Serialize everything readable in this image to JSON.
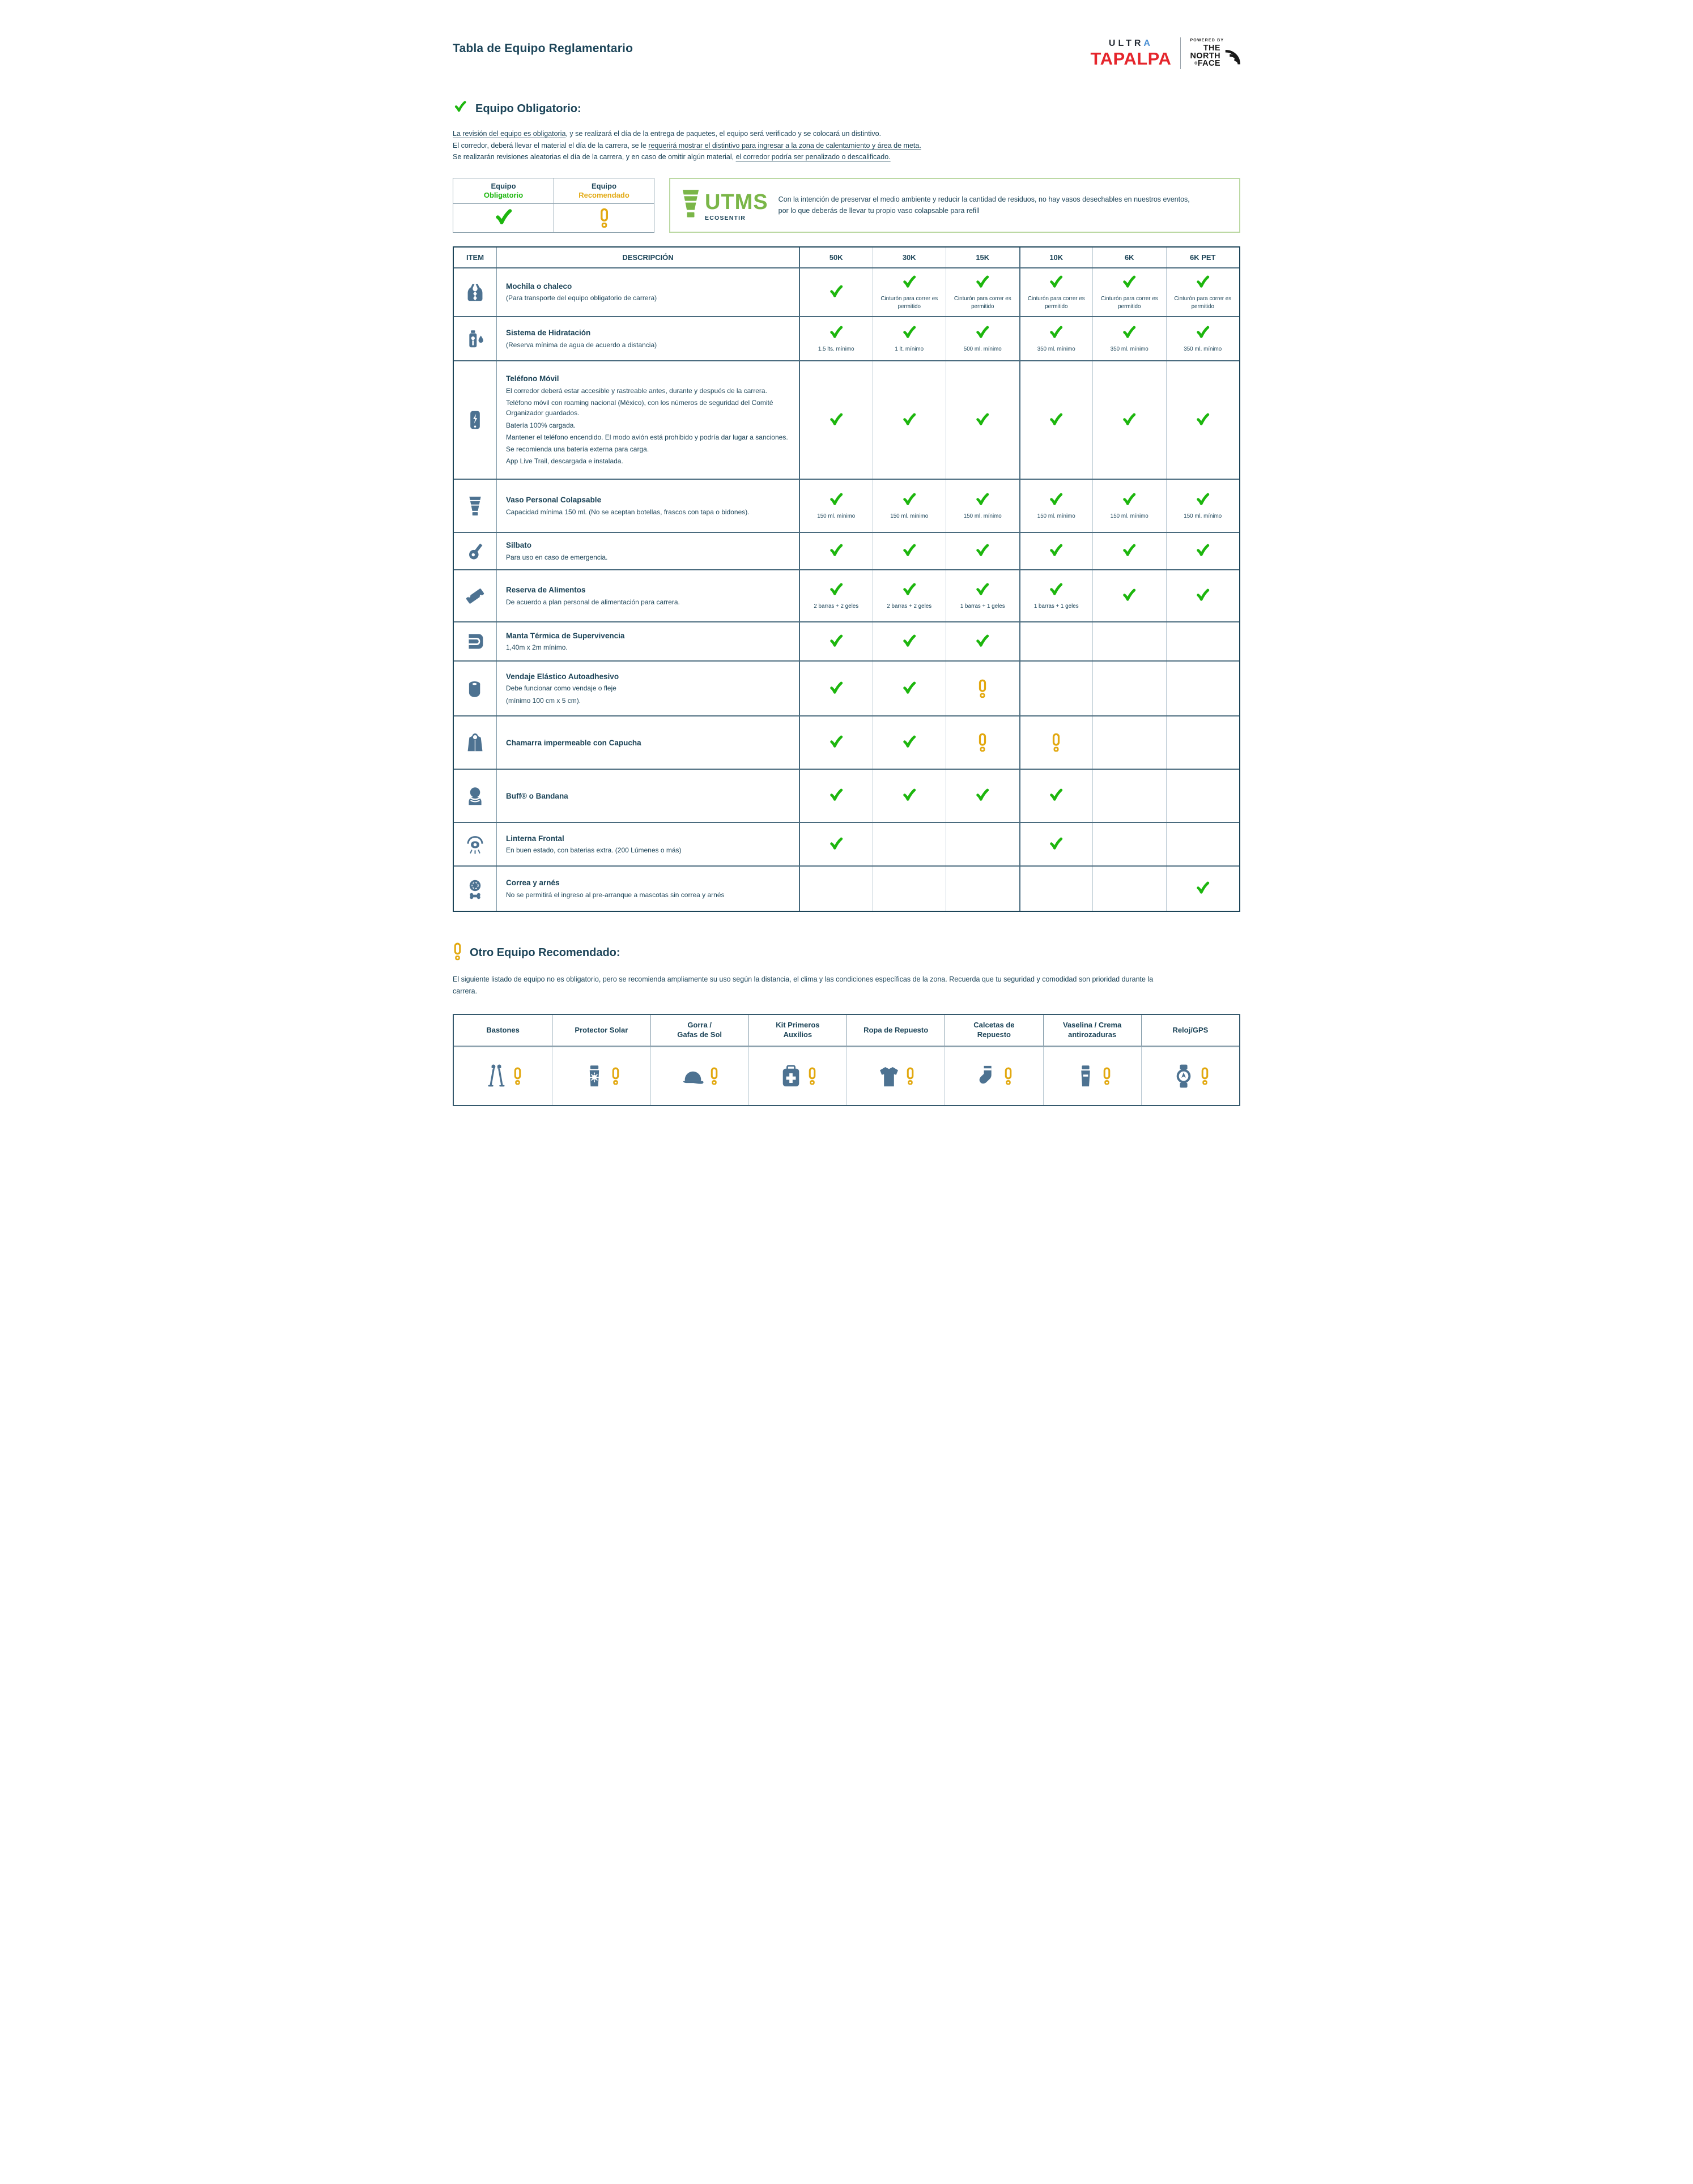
{
  "page": {
    "title": "Tabla de Equipo Reglamentario"
  },
  "colors": {
    "navy": "#1c4458",
    "slate_icon": "#4d7291",
    "check_green": "#1db60e",
    "warn_yellow": "#e2a80f",
    "brand_red": "#e5252c",
    "eco_green": "#7ab648",
    "ultra_blue": "#4a8fd3"
  },
  "brand": {
    "ultra_prefix": "ULTR",
    "ultra_accent": "A",
    "tapalpa": "TAPALPA",
    "powered_by": "POWERED BY",
    "tnf_line1": "THE",
    "tnf_line2": "NORTH",
    "tnf_line3": "FACE",
    "tnf_reg": "®"
  },
  "sections": {
    "obligatorio": {
      "heading": "Equipo Obligatorio:",
      "paragraphs": [
        [
          {
            "text": "La revisión del equipo es obligatoria",
            "underline": true
          },
          {
            "text": ", y se realizará el día de la entrega de paquetes, el equipo será verificado y se colocará un distintivo.",
            "underline": false
          }
        ],
        [
          {
            "text": "El corredor, deberá llevar el material el día de la carrera, se le ",
            "underline": false
          },
          {
            "text": "requerirá mostrar el distintivo para ingresar a la zona de calentamiento y área de meta.",
            "underline": true
          }
        ],
        [
          {
            "text": "Se realizarán revisiones aleatorias el día de la carrera, y en caso de omitir algún material, ",
            "underline": false
          },
          {
            "text": "el corredor podría ser penalizado o descalificado.",
            "underline": true
          }
        ]
      ]
    },
    "recomendado": {
      "heading": "Otro Equipo Recomendado:",
      "paragraph": "El siguiente listado de equipo no es obligatorio, pero se recomienda ampliamente su uso según la distancia, el clima y las condiciones específicas de la zona. Recuerda que tu seguridad y comodidad son prioridad durante la carrera."
    }
  },
  "legend": {
    "col1_line1": "Equipo",
    "col1_line2": "Obligatorio",
    "col2_line1": "Equipo",
    "col2_line2": "Recomendado"
  },
  "eco_box": {
    "logo_text": "UTMS",
    "logo_sub": "ECOSENTIR",
    "text": "Con la intención de preservar el medio ambiente y reducir la cantidad de residuos, no hay vasos desechables en nuestros eventos, por lo que deberás de llevar tu propio vaso colapsable para refill"
  },
  "equipment_table": {
    "headers": [
      "ITEM",
      "DESCRIPCIÓN",
      "50K",
      "30K",
      "15K",
      "10K",
      "6K",
      "6K PET"
    ],
    "rows": [
      {
        "icon": "backpack-icon",
        "title": "Mochila o chaleco",
        "desc": "(Para transporte del equipo obligatorio de carrera)",
        "cells": [
          {
            "mark": "check"
          },
          {
            "mark": "check",
            "note": "Cinturón para correr es permitido"
          },
          {
            "mark": "check",
            "note": "Cinturón para correr es permitido"
          },
          {
            "mark": "check",
            "note": "Cinturón para correr es permitido"
          },
          {
            "mark": "check",
            "note": "Cinturón para correr es permitido"
          },
          {
            "mark": "check",
            "note": "Cinturón para correr es permitido"
          }
        ]
      },
      {
        "icon": "hydration-bottle-icon",
        "title": "Sistema de Hidratación",
        "desc": "(Reserva mínima de agua de acuerdo a distancia)",
        "cells": [
          {
            "mark": "check",
            "note": "1.5 lts. mínimo"
          },
          {
            "mark": "check",
            "note": "1 lt. mínimo"
          },
          {
            "mark": "check",
            "note": "500 ml. mínimo"
          },
          {
            "mark": "check",
            "note": "350 ml. mínimo"
          },
          {
            "mark": "check",
            "note": "350 ml. mínimo"
          },
          {
            "mark": "check",
            "note": "350 ml. mínimo"
          }
        ]
      },
      {
        "icon": "mobile-phone-icon",
        "title": "Teléfono Móvil",
        "desc": [
          "El corredor deberá estar accesible y rastreable antes, durante y después de la carrera.",
          "Teléfono móvil con roaming nacional (México), con los números de seguridad del Comité Organizador guardados.",
          "Batería 100% cargada.",
          "Mantener el teléfono encendido. El modo avión está prohibido y podría dar lugar a sanciones.",
          "Se recomienda una batería externa para carga.",
          "App Live Trail, descargada e instalada."
        ],
        "cells": [
          {
            "mark": "check"
          },
          {
            "mark": "check"
          },
          {
            "mark": "check"
          },
          {
            "mark": "check"
          },
          {
            "mark": "check"
          },
          {
            "mark": "check"
          }
        ]
      },
      {
        "icon": "collapsible-cup-icon",
        "title": "Vaso Personal Colapsable",
        "desc": "Capacidad mínima 150 ml. (No se aceptan botellas, frascos con tapa o bidones).",
        "cells": [
          {
            "mark": "check",
            "note": "150 ml. mínimo"
          },
          {
            "mark": "check",
            "note": "150 ml. mínimo"
          },
          {
            "mark": "check",
            "note": "150 ml. mínimo"
          },
          {
            "mark": "check",
            "note": "150 ml. mínimo"
          },
          {
            "mark": "check",
            "note": "150 ml. mínimo"
          },
          {
            "mark": "check",
            "note": "150 ml. mínimo"
          }
        ]
      },
      {
        "icon": "whistle-icon",
        "title": "Silbato",
        "desc": "Para uso en caso de emergencia.",
        "cells": [
          {
            "mark": "check"
          },
          {
            "mark": "check"
          },
          {
            "mark": "check"
          },
          {
            "mark": "check"
          },
          {
            "mark": "check"
          },
          {
            "mark": "check"
          }
        ]
      },
      {
        "icon": "energy-bar-icon",
        "title": "Reserva de Alimentos",
        "desc": "De acuerdo a plan personal de alimentación para carrera.",
        "cells": [
          {
            "mark": "check",
            "note": "2 barras + 2 geles"
          },
          {
            "mark": "check",
            "note": "2 barras + 2 geles"
          },
          {
            "mark": "check",
            "note": "1 barras + 1 geles"
          },
          {
            "mark": "check",
            "note": "1 barras + 1 geles"
          },
          {
            "mark": "check"
          },
          {
            "mark": "check"
          }
        ]
      },
      {
        "icon": "thermal-blanket-icon",
        "title": "Manta Térmica de Supervivencia",
        "desc": "1,40m x 2m mínimo.",
        "cells": [
          {
            "mark": "check"
          },
          {
            "mark": "check"
          },
          {
            "mark": "check"
          },
          {
            "mark": ""
          },
          {
            "mark": ""
          },
          {
            "mark": ""
          }
        ]
      },
      {
        "icon": "elastic-bandage-icon",
        "title": "Vendaje Elástico Autoadhesivo",
        "desc": [
          "Debe funcionar como vendaje o fleje",
          "(mínimo 100 cm x 5 cm)."
        ],
        "cells": [
          {
            "mark": "check"
          },
          {
            "mark": "check"
          },
          {
            "mark": "warn"
          },
          {
            "mark": ""
          },
          {
            "mark": ""
          },
          {
            "mark": ""
          }
        ]
      },
      {
        "icon": "rain-jacket-icon",
        "title": "Chamarra impermeable con Capucha",
        "desc": "",
        "cells": [
          {
            "mark": "check"
          },
          {
            "mark": "check"
          },
          {
            "mark": "warn"
          },
          {
            "mark": "warn"
          },
          {
            "mark": ""
          },
          {
            "mark": ""
          }
        ]
      },
      {
        "icon": "buff-bandana-icon",
        "title": "Buff® o Bandana",
        "desc": "",
        "cells": [
          {
            "mark": "check"
          },
          {
            "mark": "check"
          },
          {
            "mark": "check"
          },
          {
            "mark": "check"
          },
          {
            "mark": ""
          },
          {
            "mark": ""
          }
        ]
      },
      {
        "icon": "headlamp-icon",
        "title": "Linterna Frontal",
        "desc": "En buen estado, con baterias extra. (200 Lúmenes o más)",
        "cells": [
          {
            "mark": "check"
          },
          {
            "mark": ""
          },
          {
            "mark": ""
          },
          {
            "mark": "check"
          },
          {
            "mark": ""
          },
          {
            "mark": ""
          }
        ]
      },
      {
        "icon": "leash-harness-icon",
        "title": "Correa y arnés",
        "desc": "No se permitirá el ingreso al pre-arranque a mascotas sin correa y arnés",
        "cells": [
          {
            "mark": ""
          },
          {
            "mark": ""
          },
          {
            "mark": ""
          },
          {
            "mark": ""
          },
          {
            "mark": ""
          },
          {
            "mark": "check"
          }
        ]
      }
    ]
  },
  "recommended_table": {
    "columns": [
      {
        "label": [
          "Bastones"
        ],
        "icon": "trekking-poles-icon"
      },
      {
        "label": [
          "Protector Solar"
        ],
        "icon": "sunscreen-icon"
      },
      {
        "label": [
          "Gorra /",
          "Gafas de Sol"
        ],
        "icon": "cap-icon"
      },
      {
        "label": [
          "Kit Primeros",
          "Auxilios"
        ],
        "icon": "first-aid-kit-icon"
      },
      {
        "label": [
          "Ropa de Repuesto"
        ],
        "icon": "spare-clothes-icon"
      },
      {
        "label": [
          "Calcetas de",
          "Repuesto"
        ],
        "icon": "spare-socks-icon"
      },
      {
        "label": [
          "Vaselina / Crema",
          "antirozaduras"
        ],
        "icon": "anti-chafing-cream-icon"
      },
      {
        "label": [
          "Reloj/GPS"
        ],
        "icon": "gps-watch-icon"
      }
    ]
  }
}
